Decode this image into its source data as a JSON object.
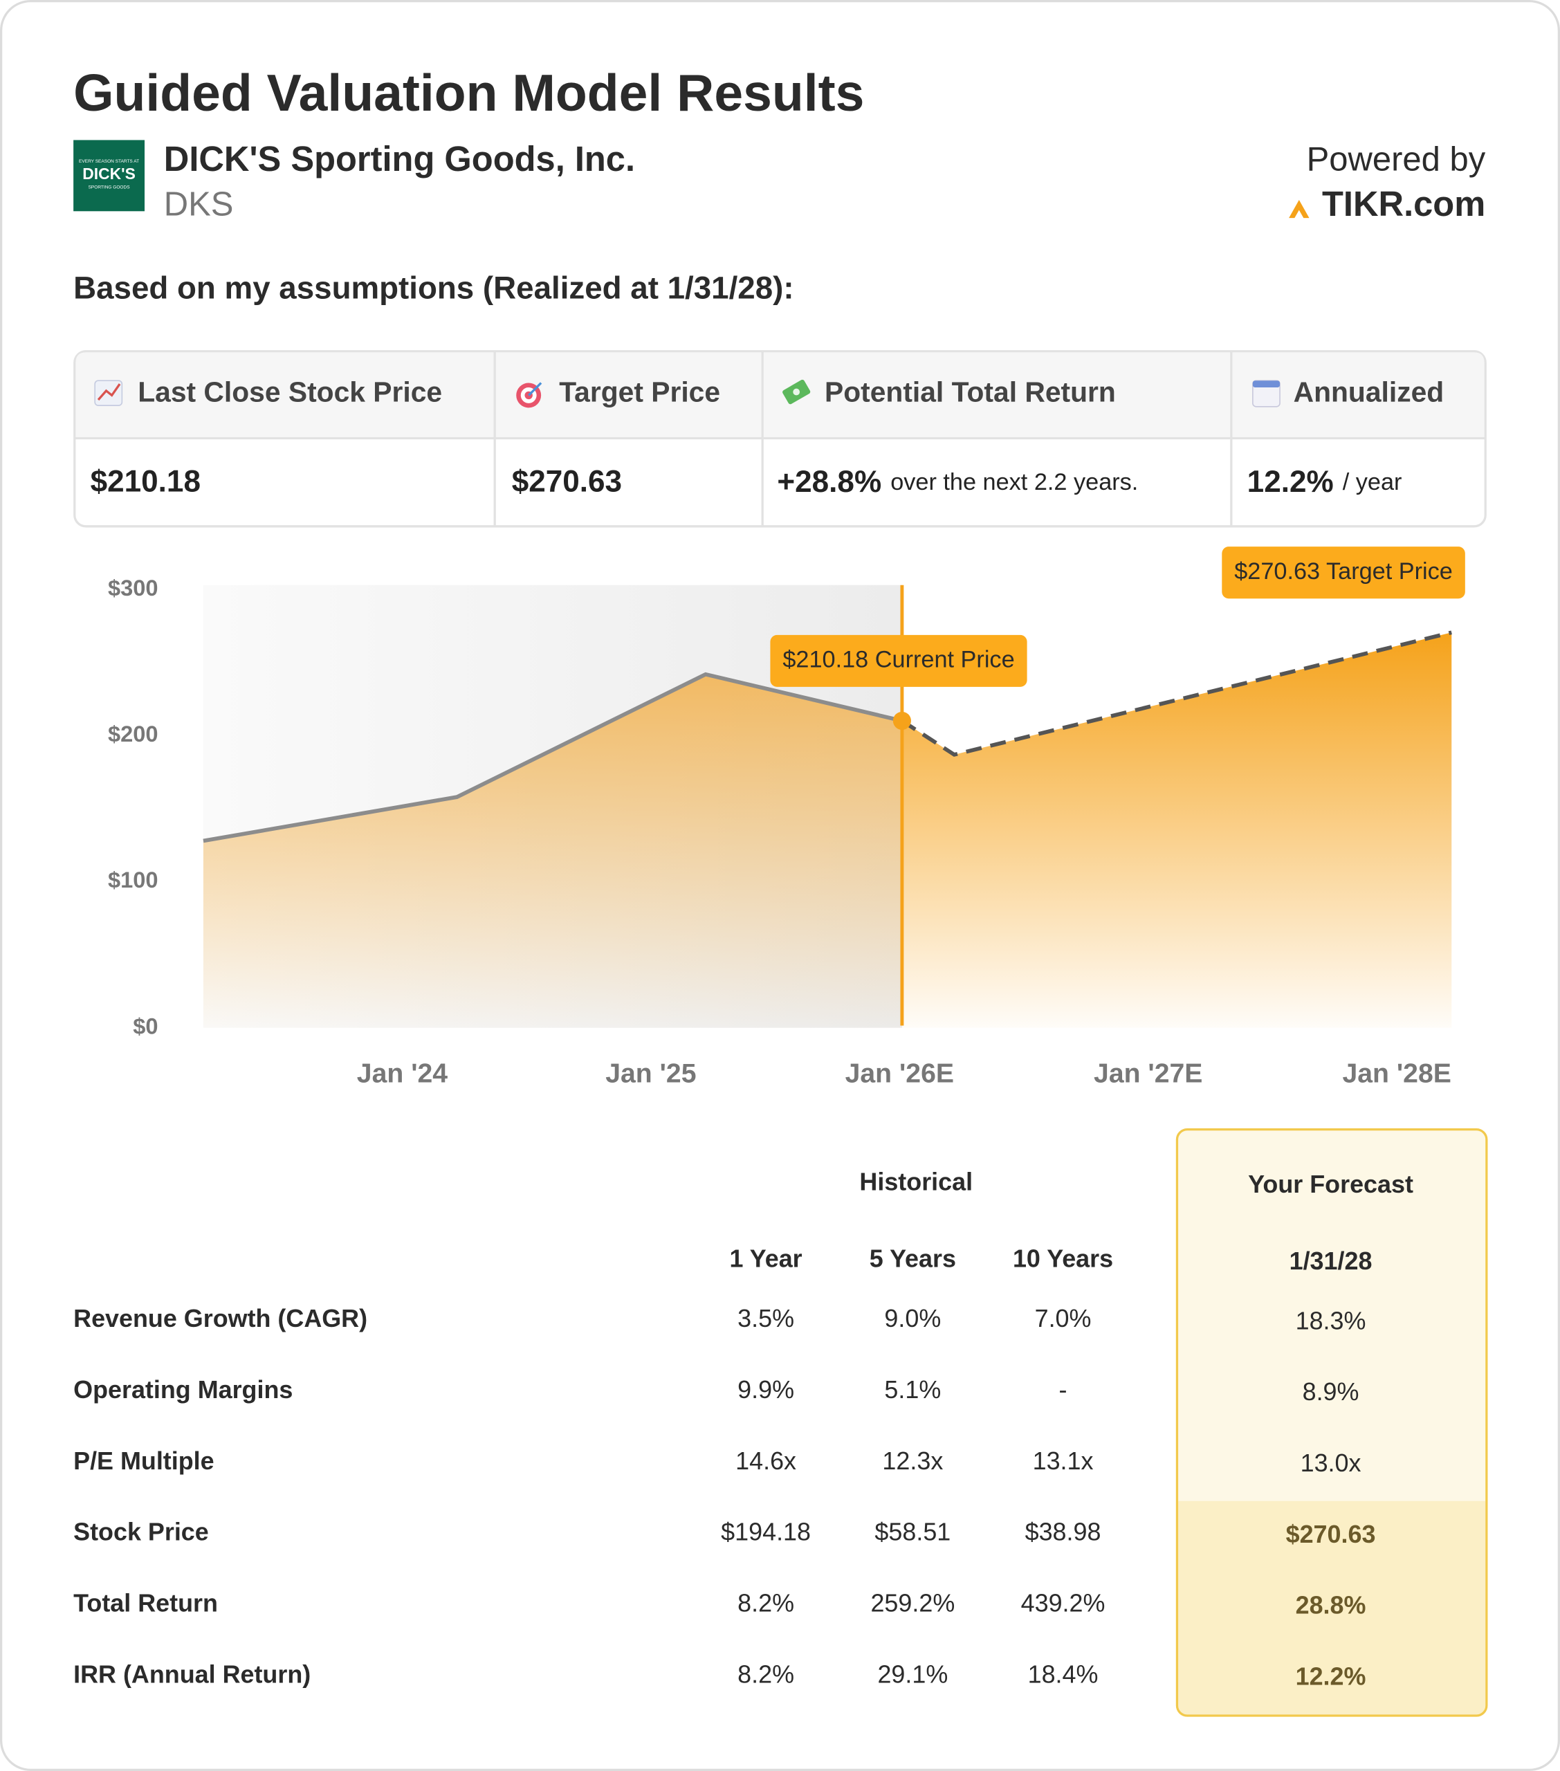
{
  "header": {
    "title": "Guided Valuation Model Results",
    "company": "DICK'S Sporting Goods, Inc.",
    "ticker": "DKS",
    "logo_text": [
      "EVERY SEASON STARTS AT",
      "DICK'S",
      "SPORTING GOODS"
    ],
    "powered_by": "Powered by",
    "brand": "TIKR.com"
  },
  "subtitle": "Based on my assumptions (Realized at 1/31/28):",
  "summary": {
    "headers": [
      "Last Close Stock Price",
      "Target Price",
      "Potential Total Return",
      "Annualized"
    ],
    "values": [
      {
        "main": "$210.18"
      },
      {
        "main": "$270.63"
      },
      {
        "main": "+28.8%",
        "note": "over the next 2.2 years."
      },
      {
        "main": "12.2%",
        "note": "/ year"
      }
    ]
  },
  "chart_data": {
    "type": "area",
    "x": [
      2023.2,
      2024.22,
      2025.22,
      2026.01,
      2026.22,
      2028.22
    ],
    "series": [
      {
        "name": "Historical",
        "color": "#8c8c8c",
        "fill": "#f2b04a",
        "values": [
          128,
          158,
          242,
          210.18,
          null,
          null
        ]
      },
      {
        "name": "Forecast",
        "color": "#555555",
        "fill": "#f5a21a",
        "dashed": true,
        "values": [
          null,
          null,
          null,
          210.18,
          187,
          270.63
        ]
      }
    ],
    "annotations": [
      "$210.18 Current Price",
      "$270.63 Target Price"
    ],
    "xlim": [
      2023.2,
      2028.22
    ],
    "xticks": [
      {
        "value": 2024,
        "label": "Jan '24"
      },
      {
        "value": 2025,
        "label": "Jan '25"
      },
      {
        "value": 2026,
        "label": "Jan '26E"
      },
      {
        "value": 2027,
        "label": "Jan '27E"
      },
      {
        "value": 2028,
        "label": "Jan '28E"
      }
    ],
    "ylim": [
      0,
      300
    ],
    "yticks": [
      {
        "value": 0,
        "label": "$0"
      },
      {
        "value": 100,
        "label": "$100"
      },
      {
        "value": 200,
        "label": "$200"
      },
      {
        "value": 300,
        "label": "$300"
      }
    ],
    "grid": false
  },
  "table": {
    "group_header": "Historical",
    "forecast_header": "Your Forecast",
    "columns": [
      "1 Year",
      "5 Years",
      "10 Years",
      "1/31/28"
    ],
    "rows": [
      {
        "label": "Revenue Growth (CAGR)",
        "values": [
          "3.5%",
          "9.0%",
          "7.0%",
          "18.3%"
        ]
      },
      {
        "label": "Operating Margins",
        "values": [
          "9.9%",
          "5.1%",
          "-",
          "8.9%"
        ]
      },
      {
        "label": "P/E Multiple",
        "values": [
          "14.6x",
          "12.3x",
          "13.1x",
          "13.0x"
        ]
      },
      {
        "label": "Stock Price",
        "values": [
          "$194.18",
          "$58.51",
          "$38.98",
          "$270.63"
        ]
      },
      {
        "label": "Total Return",
        "values": [
          "8.2%",
          "259.2%",
          "439.2%",
          "28.8%"
        ]
      },
      {
        "label": "IRR (Annual Return)",
        "values": [
          "8.2%",
          "29.1%",
          "18.4%",
          "12.2%"
        ]
      }
    ]
  }
}
